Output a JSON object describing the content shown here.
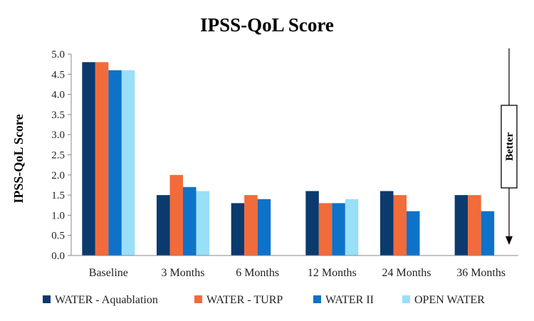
{
  "chart_data": {
    "type": "bar",
    "title": "IPSS-QoL Score",
    "ylabel": "IPSS-QoL Score",
    "xlabel": "",
    "ylim": [
      0,
      5
    ],
    "ytick_step": 0.5,
    "yticks": [
      "0.0",
      "0.5",
      "1.0",
      "1.5",
      "2.0",
      "2.5",
      "3.0",
      "3.5",
      "4.0",
      "4.5",
      "5.0"
    ],
    "grid": false,
    "legend_position": "bottom",
    "categories": [
      "Baseline",
      "3 Months",
      "6 Months",
      "12 Months",
      "24 Months",
      "36 Months"
    ],
    "series": [
      {
        "name": "WATER - Aquablation",
        "color": "#0b3a6e",
        "values": [
          4.8,
          1.5,
          1.3,
          1.6,
          1.6,
          1.5
        ]
      },
      {
        "name": "WATER - TURP",
        "color": "#f26b3a",
        "values": [
          4.8,
          2.0,
          1.5,
          1.3,
          1.5,
          1.5
        ]
      },
      {
        "name": "WATER II",
        "color": "#0e72c8",
        "values": [
          4.6,
          1.7,
          1.4,
          1.3,
          1.1,
          1.1
        ]
      },
      {
        "name": "OPEN WATER",
        "color": "#99dff7",
        "values": [
          4.6,
          1.6,
          null,
          1.4,
          null,
          null
        ]
      }
    ],
    "annotation": {
      "text": "Better",
      "direction": "down"
    }
  }
}
